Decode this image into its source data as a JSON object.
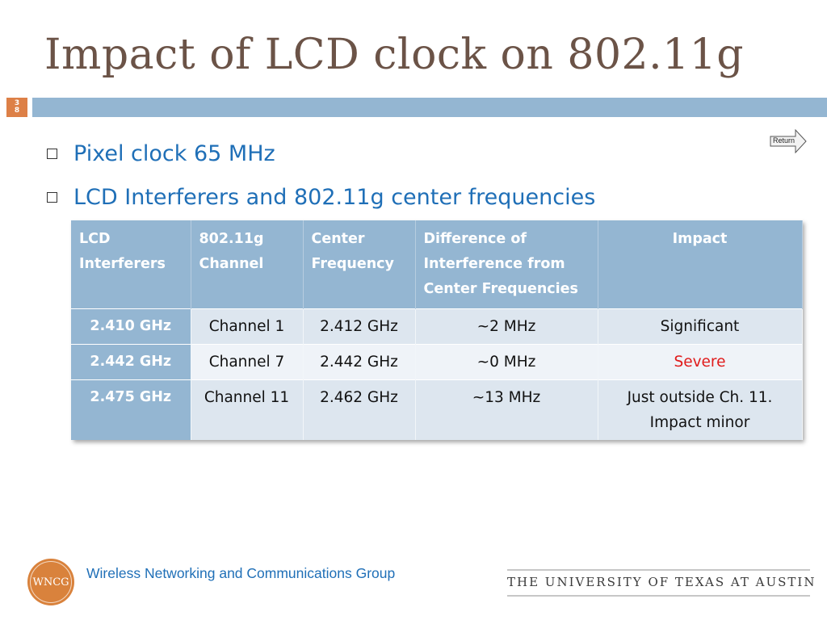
{
  "slide": {
    "title": "Impact of LCD clock on 802.11g",
    "number_digits": [
      "3",
      "8"
    ]
  },
  "bullets": [
    "Pixel clock 65 MHz",
    "LCD Interferers and 802.11g center frequencies"
  ],
  "return_button": {
    "label": "Return"
  },
  "table": {
    "headers": [
      "LCD Interferers",
      "802.11g Channel",
      "Center Frequency",
      "Difference of Interference from Center Frequencies",
      "Impact"
    ],
    "rows": [
      [
        "2.410 GHz",
        "Channel 1",
        "2.412 GHz",
        "~2 MHz",
        "Significant"
      ],
      [
        "2.442 GHz",
        "Channel 7",
        "2.442 GHz",
        "~0 MHz",
        "Severe"
      ],
      [
        "2.475 GHz",
        "Channel 11",
        "2.462 GHz",
        "~13 MHz",
        "Just outside Ch. 11. Impact minor"
      ]
    ],
    "severe_color": "#e01b1b"
  },
  "footer": {
    "logo_text": "WNCG",
    "group_name": "Wireless Networking and Communications Group",
    "university": "THE UNIVERSITY OF TEXAS AT AUSTIN"
  },
  "colors": {
    "title": "#6b5347",
    "accent_blue": "#94b6d2",
    "slide_number_bg": "#dd8047",
    "bullet_text": "#1f6fb7"
  }
}
